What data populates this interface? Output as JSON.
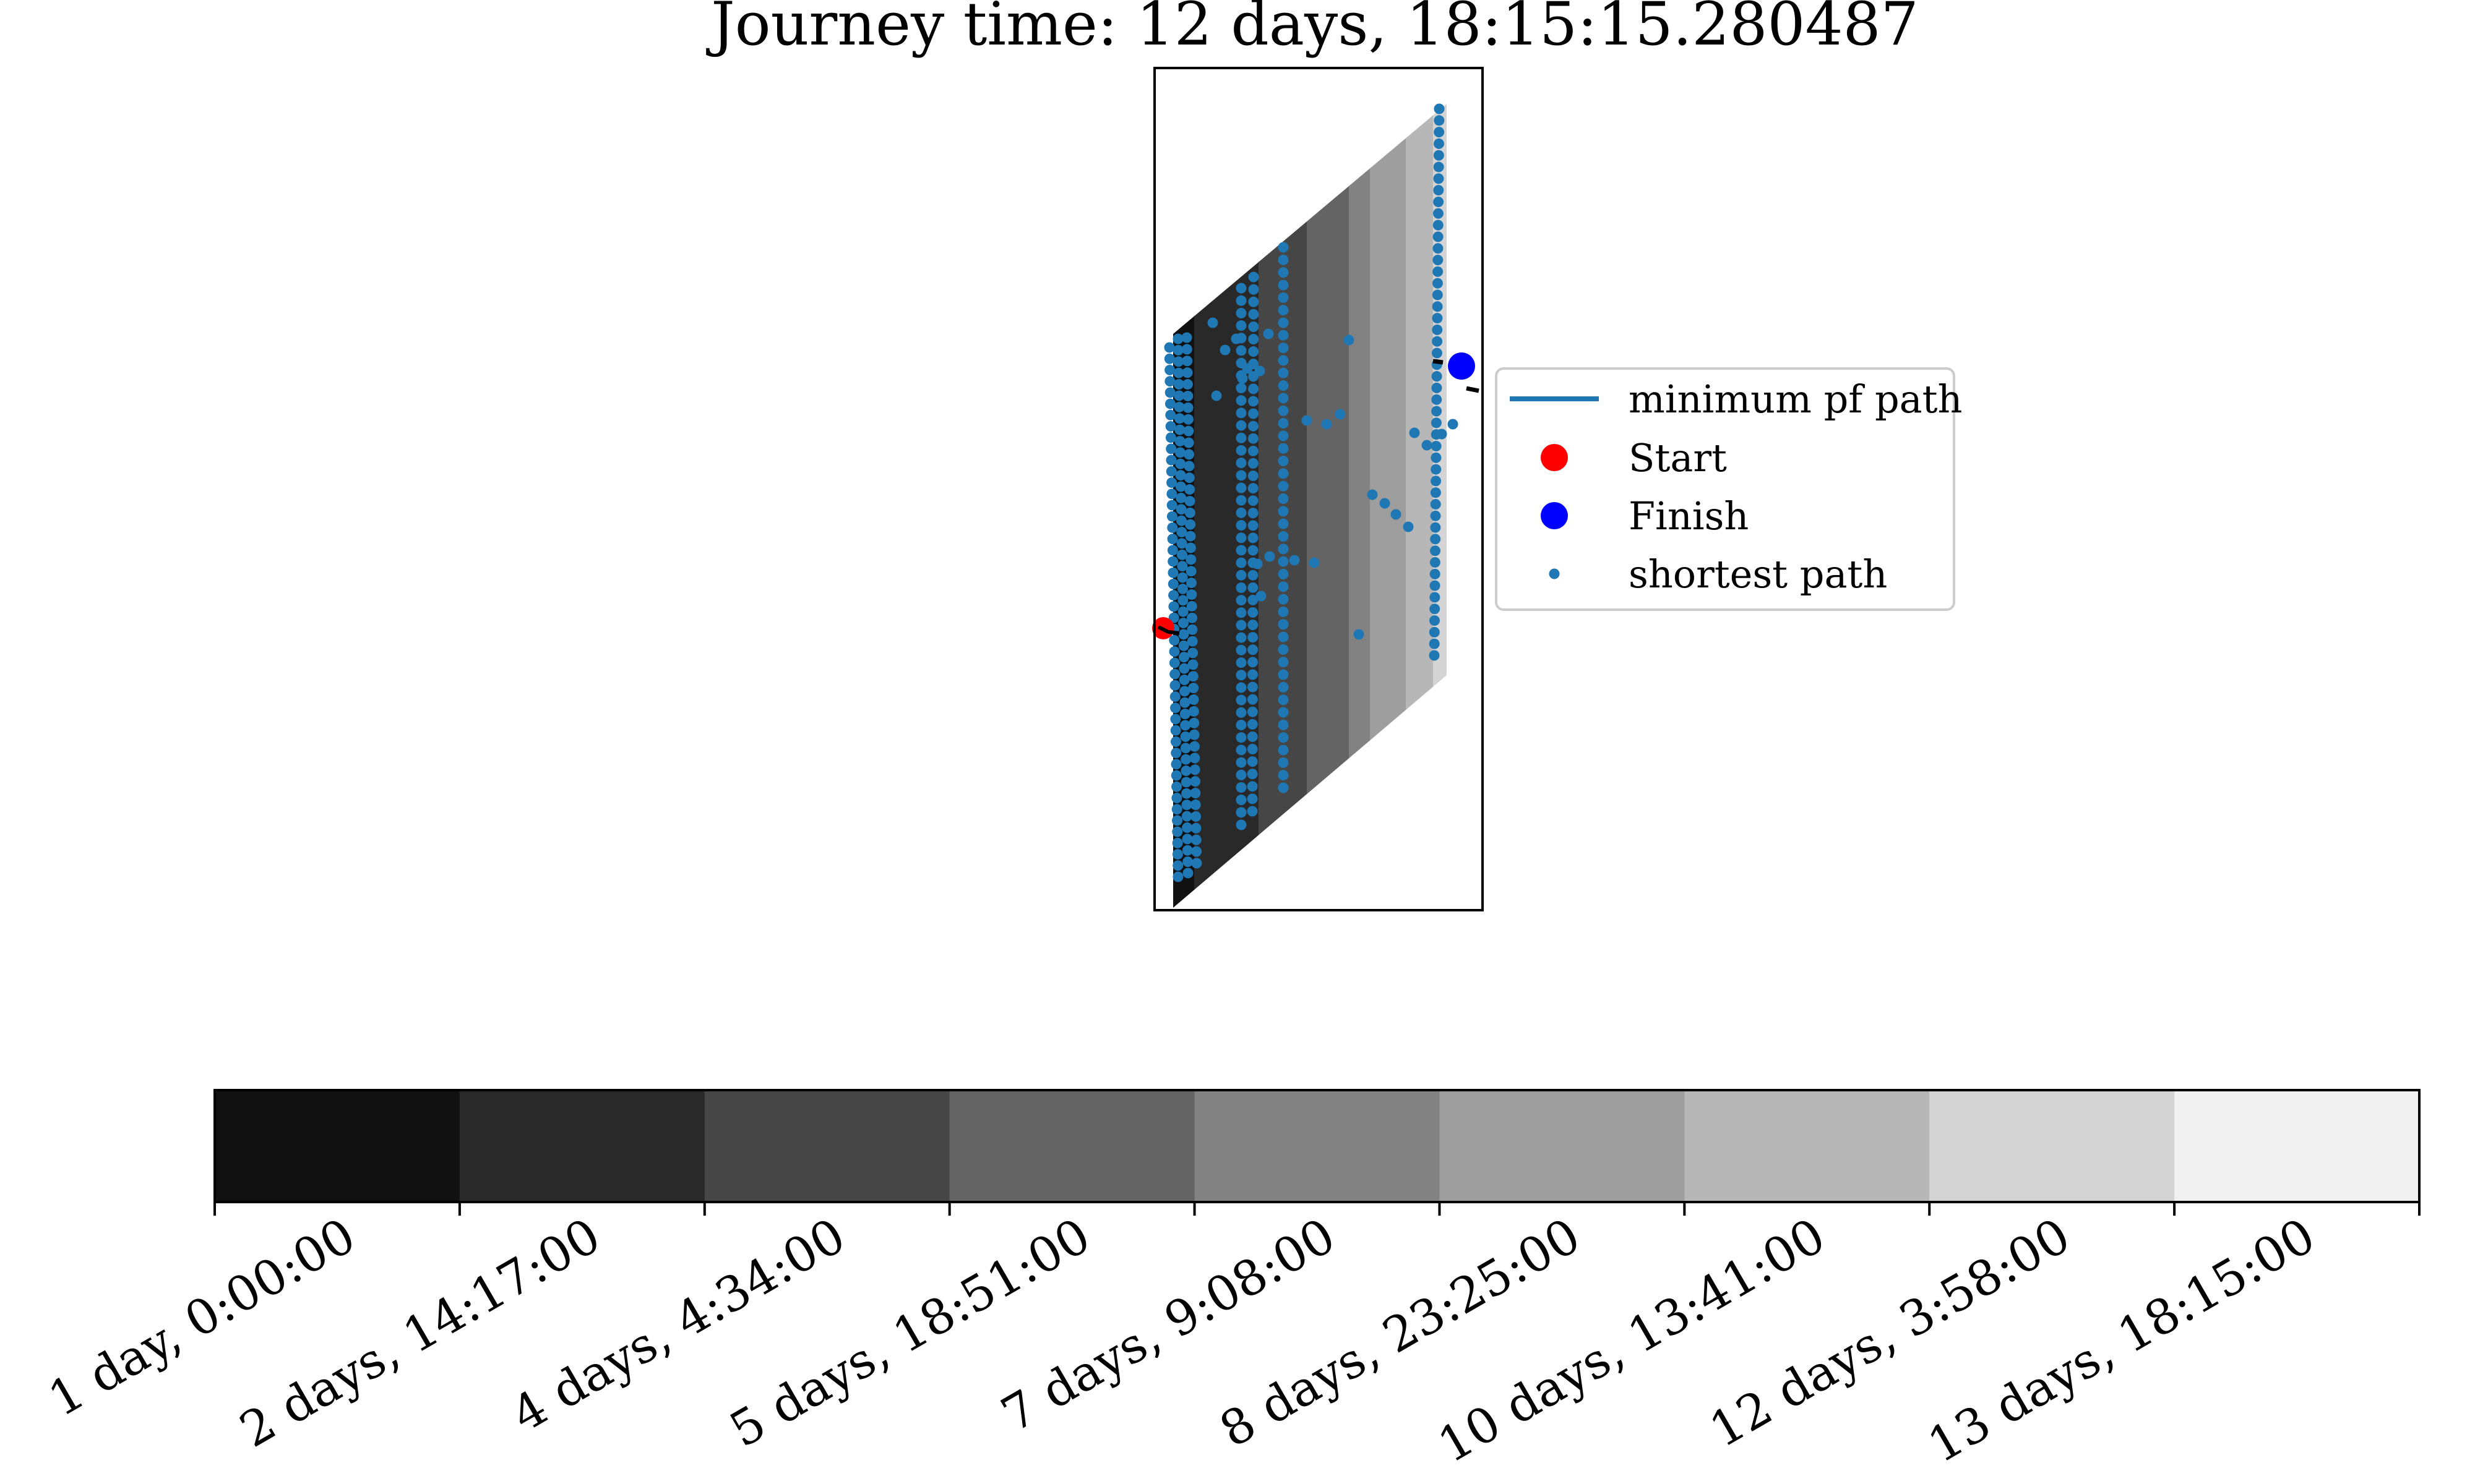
{
  "chart_data": {
    "type": "contour",
    "title": "Journey time: 12 days, 18:15:15.280487",
    "xlabel": "",
    "ylabel": "",
    "legend": {
      "placement": "right of axes",
      "entries": [
        {
          "label": "minimum pf path",
          "marker": "line",
          "color": "#1f77b4"
        },
        {
          "label": "Start",
          "marker": "large-dot",
          "color": "#ff0000"
        },
        {
          "label": "Finish",
          "marker": "large-dot",
          "color": "#0000ff"
        },
        {
          "label": "shortest path",
          "marker": "small-dot",
          "color": "#1f77b4"
        }
      ]
    },
    "colorbar": {
      "orientation": "horizontal",
      "placement": "below axes",
      "levels": [
        "1 day, 0:00:00",
        "2 days, 14:17:00",
        "4 days, 4:34:00",
        "5 days, 18:51:00",
        "7 days, 9:08:00",
        "8 days, 23:25:00",
        "10 days, 13:41:00",
        "12 days, 3:58:00",
        "13 days, 18:15:00"
      ],
      "band_colors": [
        "#111111",
        "#292929",
        "#464646",
        "#646464",
        "#828282",
        "#9e9e9e",
        "#b7b7b7",
        "#d4d4d4",
        "#f0f0f0"
      ]
    },
    "contour_bands": [
      {
        "level_index": 0,
        "color": "#111111"
      },
      {
        "level_index": 1,
        "color": "#292929"
      },
      {
        "level_index": 2,
        "color": "#464646"
      },
      {
        "level_index": 3,
        "color": "#646464"
      },
      {
        "level_index": 4,
        "color": "#828282"
      },
      {
        "level_index": 5,
        "color": "#9e9e9e"
      },
      {
        "level_index": 6,
        "color": "#b7b7b7"
      },
      {
        "level_index": 7,
        "color": "#d4d4d4"
      },
      {
        "level_index": 8,
        "color": "#f0f0f0"
      }
    ],
    "start": {
      "color": "#ff0000"
    },
    "finish": {
      "color": "#0000ff"
    },
    "shortest_path_color": "#1f77b4"
  }
}
